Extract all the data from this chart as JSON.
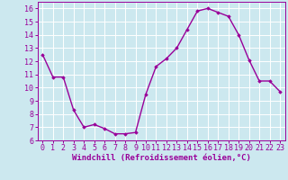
{
  "x": [
    0,
    1,
    2,
    3,
    4,
    5,
    6,
    7,
    8,
    9,
    10,
    11,
    12,
    13,
    14,
    15,
    16,
    17,
    18,
    19,
    20,
    21,
    22,
    23
  ],
  "y": [
    12.5,
    10.8,
    10.8,
    8.3,
    7.0,
    7.2,
    6.9,
    6.5,
    6.5,
    6.6,
    9.5,
    11.6,
    12.2,
    13.0,
    14.4,
    15.8,
    16.0,
    15.7,
    15.4,
    14.0,
    12.1,
    10.5,
    10.5,
    9.7
  ],
  "line_color": "#990099",
  "marker": "D",
  "markersize": 1.8,
  "linewidth": 1.0,
  "bg_color": "#cce8ef",
  "grid_color": "#aacccc",
  "xlabel": "Windchill (Refroidissement éolien,°C)",
  "xlabel_color": "#990099",
  "tick_color": "#990099",
  "xlim": [
    -0.5,
    23.5
  ],
  "ylim": [
    6,
    16.5
  ],
  "yticks": [
    6,
    7,
    8,
    9,
    10,
    11,
    12,
    13,
    14,
    15,
    16
  ],
  "xticks": [
    0,
    1,
    2,
    3,
    4,
    5,
    6,
    7,
    8,
    9,
    10,
    11,
    12,
    13,
    14,
    15,
    16,
    17,
    18,
    19,
    20,
    21,
    22,
    23
  ],
  "fontsize_xlabel": 6.5,
  "fontsize_ticks": 6.0
}
